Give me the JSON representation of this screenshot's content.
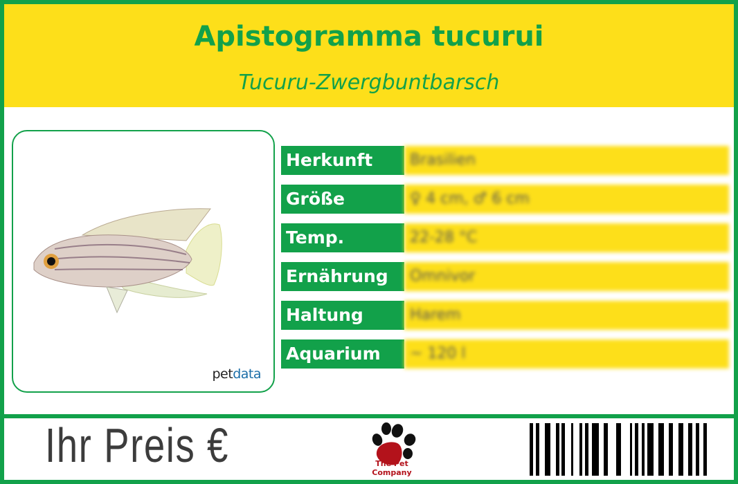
{
  "header": {
    "title": "Apistogramma tucurui",
    "subtitle": "Tucuru-Zwergbuntbarsch"
  },
  "photo": {
    "brand_a": "pet",
    "brand_b": "data"
  },
  "facts": [
    {
      "label": "Herkunft",
      "value": "Brasilien"
    },
    {
      "label": "Größe",
      "value": "♀ 4 cm, ♂ 6 cm"
    },
    {
      "label": "Temp.",
      "value": "22-28 °C"
    },
    {
      "label": "Ernährung",
      "value": "Omnivor"
    },
    {
      "label": "Haltung",
      "value": "Harem"
    },
    {
      "label": "Aquarium",
      "value": "~ 120 l"
    }
  ],
  "footer": {
    "price_label": "Ihr Preis €",
    "logo_text": "The Pet Company"
  },
  "colors": {
    "green": "#12a14a",
    "yellow": "#fddf1a"
  }
}
